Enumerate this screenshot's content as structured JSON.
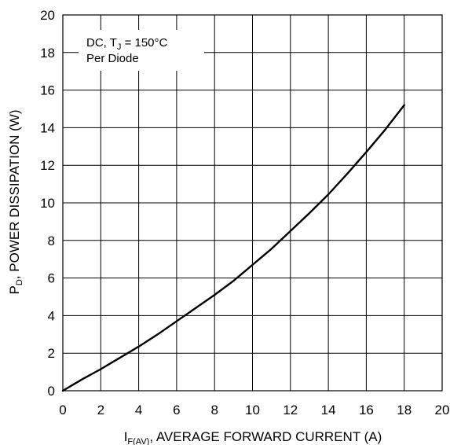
{
  "chart_data": {
    "type": "line",
    "title": "",
    "x_ticks": [
      "0",
      "2",
      "4",
      "6",
      "8",
      "10",
      "12",
      "14",
      "16",
      "18",
      "20"
    ],
    "y_ticks": [
      "0",
      "2",
      "4",
      "6",
      "8",
      "10",
      "12",
      "14",
      "16",
      "18",
      "20"
    ],
    "xlim": [
      0,
      20
    ],
    "ylim": [
      0,
      20
    ],
    "grid": true,
    "xlabel": {
      "main": "I",
      "sub": "F(AV)",
      "rest": ", AVERAGE FORWARD CURRENT (A)"
    },
    "ylabel": {
      "main": "P",
      "sub": "D",
      "rest": ", POWER DISSIPATION (W)"
    },
    "annotation": {
      "line1_a": "DC, T",
      "line1_sub": "J",
      "line1_b": " = 150°C",
      "line2": "Per Diode"
    },
    "series": [
      {
        "x": [
          0,
          1,
          2,
          3,
          4,
          5,
          6,
          7,
          8,
          9,
          10,
          11,
          12,
          13,
          14,
          15,
          16,
          17,
          18
        ],
        "y": [
          0,
          0.6,
          1.15,
          1.75,
          2.35,
          3.0,
          3.7,
          4.4,
          5.1,
          5.85,
          6.7,
          7.55,
          8.5,
          9.45,
          10.45,
          11.55,
          12.7,
          13.9,
          15.2
        ]
      }
    ]
  }
}
